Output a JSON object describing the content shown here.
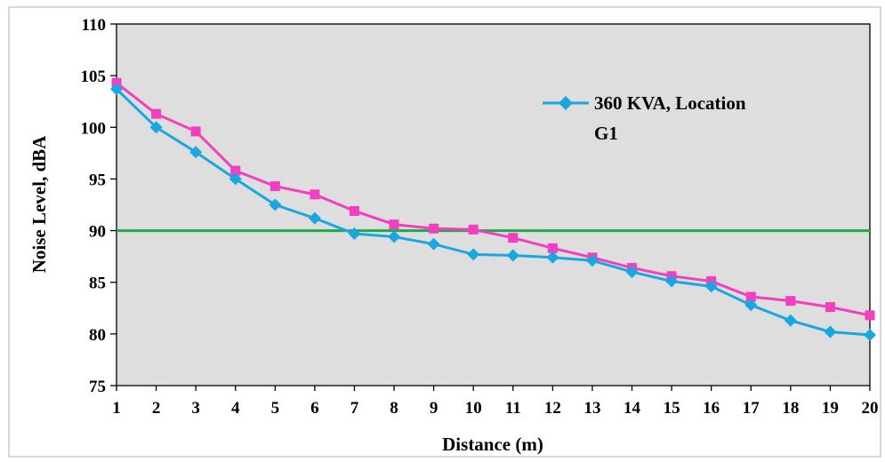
{
  "chart_data": {
    "type": "line",
    "x": [
      1,
      2,
      3,
      4,
      5,
      6,
      7,
      8,
      9,
      10,
      11,
      12,
      13,
      14,
      15,
      16,
      17,
      18,
      19,
      20
    ],
    "series": [
      {
        "name": "360 KVA, Location G1",
        "color": "#1aa7e0",
        "marker": "diamond",
        "values": [
          103.7,
          100.0,
          97.6,
          95.0,
          92.5,
          91.2,
          89.7,
          89.4,
          88.7,
          87.7,
          87.6,
          87.4,
          87.1,
          86.0,
          85.1,
          84.6,
          82.8,
          81.3,
          80.2,
          79.9
        ]
      },
      {
        "color": "#f23fbf",
        "marker": "square",
        "values": [
          104.3,
          101.3,
          99.6,
          95.8,
          94.3,
          93.5,
          91.9,
          90.6,
          90.2,
          90.1,
          89.3,
          88.3,
          87.4,
          86.4,
          85.6,
          85.1,
          83.6,
          83.2,
          82.6,
          81.8
        ]
      }
    ],
    "reference_line": {
      "y": 90,
      "color": "#1faa4a"
    },
    "xlabel": "Distance (m)",
    "ylabel": "Noise Level, dBA",
    "xlim": [
      1,
      20
    ],
    "ylim": [
      75,
      110
    ],
    "yticks": [
      75,
      80,
      85,
      90,
      95,
      100,
      105,
      110
    ],
    "xticks": [
      1,
      2,
      3,
      4,
      5,
      6,
      7,
      8,
      9,
      10,
      11,
      12,
      13,
      14,
      15,
      16,
      17,
      18,
      19,
      20
    ],
    "legend_lines": [
      "360 KVA, Location",
      "G1"
    ],
    "legend_position": "top-right",
    "plot_background": "#dedede",
    "grid": false
  }
}
